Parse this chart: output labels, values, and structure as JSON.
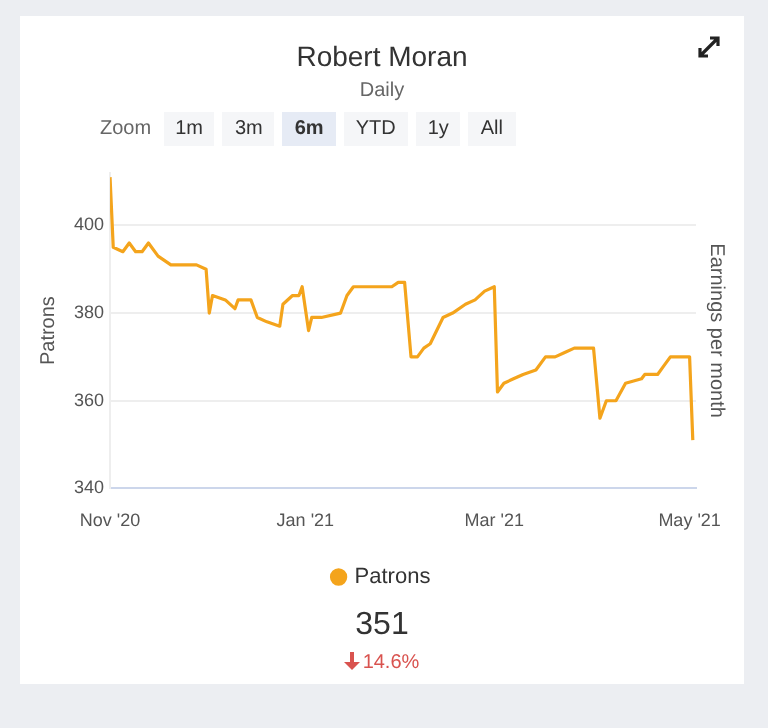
{
  "chart_data": {
    "type": "line",
    "title": "Robert Moran",
    "subtitle": "Daily",
    "ylabel": "Patrons",
    "y2label": "Earnings per month",
    "x": [
      "2020-11-01",
      "2020-11-02",
      "2020-11-05",
      "2020-11-07",
      "2020-11-09",
      "2020-11-11",
      "2020-11-13",
      "2020-11-16",
      "2020-11-20",
      "2020-11-23",
      "2020-11-28",
      "2020-12-01",
      "2020-12-02",
      "2020-12-03",
      "2020-12-07",
      "2020-12-10",
      "2020-12-11",
      "2020-12-15",
      "2020-12-17",
      "2020-12-20",
      "2020-12-24",
      "2020-12-25",
      "2020-12-28",
      "2020-12-30",
      "2020-12-31",
      "2021-01-02",
      "2021-01-03",
      "2021-01-06",
      "2021-01-12",
      "2021-01-14",
      "2021-01-16",
      "2021-01-26",
      "2021-01-28",
      "2021-01-30",
      "2021-02-01",
      "2021-02-03",
      "2021-02-05",
      "2021-02-07",
      "2021-02-09",
      "2021-02-13",
      "2021-02-16",
      "2021-02-20",
      "2021-02-23",
      "2021-02-26",
      "2021-03-01",
      "2021-03-02",
      "2021-03-04",
      "2021-03-07",
      "2021-03-10",
      "2021-03-14",
      "2021-03-17",
      "2021-03-20",
      "2021-03-23",
      "2021-03-26",
      "2021-04-01",
      "2021-04-03",
      "2021-04-05",
      "2021-04-08",
      "2021-04-11",
      "2021-04-16",
      "2021-04-17",
      "2021-04-21",
      "2021-04-23",
      "2021-04-25",
      "2021-04-29",
      "2021-05-01",
      "2021-05-02"
    ],
    "series": [
      {
        "name": "Patrons",
        "color": "#f4a41c",
        "values": [
          411,
          395,
          394,
          396,
          394,
          394,
          396,
          393,
          391,
          391,
          391,
          390,
          380,
          384,
          383,
          381,
          383,
          383,
          379,
          378,
          377,
          382,
          384,
          384,
          386,
          376,
          379,
          379,
          380,
          384,
          386,
          386,
          386,
          387,
          387,
          370,
          370,
          372,
          373,
          379,
          380,
          382,
          383,
          385,
          386,
          362,
          364,
          365,
          366,
          367,
          370,
          370,
          371,
          372,
          372,
          356,
          360,
          360,
          364,
          365,
          366,
          366,
          368,
          370,
          370,
          370,
          351
        ]
      }
    ],
    "xlim": [
      "2020-11-01",
      "2021-05-03"
    ],
    "xticks": [
      {
        "value": "2020-11-01",
        "label": "Nov '20"
      },
      {
        "value": "2021-01-01",
        "label": "Jan '21"
      },
      {
        "value": "2021-03-01",
        "label": "Mar '21"
      },
      {
        "value": "2021-05-01",
        "label": "May '21"
      }
    ],
    "ylim": [
      340,
      412
    ],
    "yticks": [
      340,
      360,
      380,
      400
    ],
    "grid": "y",
    "legend": "bottom",
    "marker": "none",
    "line_style": "solid",
    "annotations": [
      "Zoom",
      "1m",
      "3m",
      "6m",
      "YTD",
      "1y",
      "All",
      "351",
      "14.6%"
    ]
  }
}
